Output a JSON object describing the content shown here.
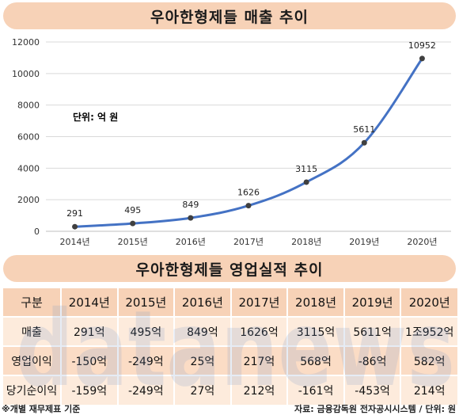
{
  "banner_top": "우아한형제들 매출 추이",
  "banner_mid": "우아한형제들 영업실적 추이",
  "unit_note": "단위: 억 원",
  "chart_data": {
    "type": "line",
    "title": "우아한형제들 매출 추이",
    "x": [
      "2014년",
      "2015년",
      "2016년",
      "2017년",
      "2018년",
      "2019년",
      "2020년"
    ],
    "series": [
      {
        "values": [
          291,
          495,
          849,
          1626,
          3115,
          5611,
          10952
        ],
        "color": "#4472c4"
      }
    ],
    "data_labels": [
      "291",
      "495",
      "849",
      "1626",
      "3115",
      "5611",
      "10952"
    ],
    "y_ticks": [
      "0",
      "2000",
      "4000",
      "6000",
      "8000",
      "10000",
      "12000"
    ],
    "ylim": [
      0,
      12000
    ],
    "grid": true,
    "legend": "none"
  },
  "table": {
    "header": [
      "구분",
      "2014년",
      "2015년",
      "2016년",
      "2017년",
      "2018년",
      "2019년",
      "2020년"
    ],
    "rows": [
      [
        "매출",
        "291억",
        "495억",
        "849억",
        "1626억",
        "3115억",
        "5611억",
        "1조952억"
      ],
      [
        "영업이익",
        "-150억",
        "-249억",
        "25억",
        "217억",
        "568억",
        "-86억",
        "582억"
      ],
      [
        "당기순이익",
        "-159억",
        "-249억",
        "27억",
        "212억",
        "-161억",
        "-453억",
        "214억"
      ]
    ]
  },
  "watermark": "datanews",
  "footer": {
    "left": "※개별 재무제표 기준",
    "right": "자료: 금융감독원 전자공시시스템 / 단위: 원"
  }
}
